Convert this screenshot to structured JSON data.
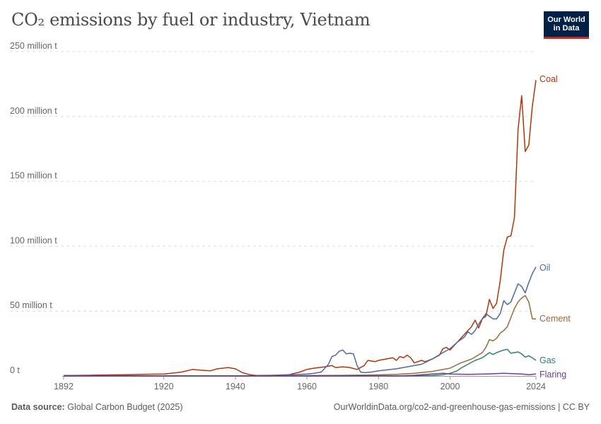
{
  "header": {
    "title": "CO₂ emissions by fuel or industry, Vietnam",
    "logo_line1": "Our World",
    "logo_line2": "in Data"
  },
  "footer": {
    "source_label": "Data source:",
    "source_value": "Global Carbon Budget (2025)",
    "url": "OurWorldinData.org/co2-and-greenhouse-gas-emissions | CC BY"
  },
  "chart_data": {
    "type": "line",
    "title": "CO₂ emissions by fuel or industry, Vietnam",
    "xlabel": "",
    "ylabel": "",
    "xlim": [
      1892,
      2024
    ],
    "ylim": [
      0,
      250
    ],
    "x_ticks": [
      "1892",
      "1920",
      "1940",
      "1960",
      "1980",
      "2000",
      "2024"
    ],
    "y_ticks": [
      "0 t",
      "50 million t",
      "100 million t",
      "150 million t",
      "200 million t",
      "250 million t"
    ],
    "y_tick_values": [
      0,
      50,
      100,
      150,
      200,
      250
    ],
    "grid": true,
    "legend": "inline-right",
    "series": [
      {
        "name": "Coal",
        "color": "#b13507",
        "points": [
          [
            1892,
            0.3
          ],
          [
            1895,
            0.4
          ],
          [
            1900,
            0.6
          ],
          [
            1905,
            0.8
          ],
          [
            1910,
            1.0
          ],
          [
            1915,
            1.3
          ],
          [
            1920,
            1.5
          ],
          [
            1922,
            2.0
          ],
          [
            1925,
            3.0
          ],
          [
            1928,
            5.0
          ],
          [
            1930,
            4.5
          ],
          [
            1933,
            4.0
          ],
          [
            1935,
            5.5
          ],
          [
            1938,
            6.5
          ],
          [
            1940,
            5.5
          ],
          [
            1942,
            2.5
          ],
          [
            1944,
            1.0
          ],
          [
            1946,
            0.3
          ],
          [
            1950,
            0.5
          ],
          [
            1955,
            1.0
          ],
          [
            1958,
            3.0
          ],
          [
            1960,
            5.0
          ],
          [
            1962,
            6.0
          ],
          [
            1965,
            7.0
          ],
          [
            1967,
            8.0
          ],
          [
            1968,
            6.5
          ],
          [
            1970,
            7.0
          ],
          [
            1972,
            6.5
          ],
          [
            1974,
            5.0
          ],
          [
            1976,
            8.0
          ],
          [
            1977,
            12.0
          ],
          [
            1979,
            11.0
          ],
          [
            1980,
            12.0
          ],
          [
            1982,
            13.0
          ],
          [
            1984,
            14.0
          ],
          [
            1985,
            12.0
          ],
          [
            1986,
            15.0
          ],
          [
            1987,
            14.0
          ],
          [
            1988,
            16.0
          ],
          [
            1989,
            14.0
          ],
          [
            1990,
            10.0
          ],
          [
            1992,
            12.0
          ],
          [
            1993,
            11.0
          ],
          [
            1995,
            13.0
          ],
          [
            1997,
            16.0
          ],
          [
            1998,
            21.0
          ],
          [
            1999,
            22.0
          ],
          [
            2000,
            20.0
          ],
          [
            2002,
            26.0
          ],
          [
            2004,
            32.0
          ],
          [
            2006,
            38.0
          ],
          [
            2007,
            43.0
          ],
          [
            2008,
            37.0
          ],
          [
            2009,
            44.0
          ],
          [
            2010,
            46.0
          ],
          [
            2011,
            59.0
          ],
          [
            2012,
            52.0
          ],
          [
            2013,
            56.0
          ],
          [
            2014,
            73.0
          ],
          [
            2015,
            97.0
          ],
          [
            2016,
            107.0
          ],
          [
            2017,
            108.0
          ],
          [
            2018,
            122.0
          ],
          [
            2019,
            190.0
          ],
          [
            2020,
            216.0
          ],
          [
            2021,
            173.0
          ],
          [
            2022,
            178.0
          ],
          [
            2023,
            208.0
          ],
          [
            2024,
            228.0
          ]
        ]
      },
      {
        "name": "Oil",
        "color": "#4c6a9c",
        "points": [
          [
            1892,
            0
          ],
          [
            1940,
            0
          ],
          [
            1950,
            0.2
          ],
          [
            1955,
            0.8
          ],
          [
            1960,
            1.5
          ],
          [
            1962,
            2.0
          ],
          [
            1964,
            3.0
          ],
          [
            1966,
            9.0
          ],
          [
            1967,
            15.0
          ],
          [
            1968,
            16.0
          ],
          [
            1969,
            19.0
          ],
          [
            1970,
            20.0
          ],
          [
            1971,
            17.0
          ],
          [
            1972,
            17.5
          ],
          [
            1973,
            17.0
          ],
          [
            1974,
            8.0
          ],
          [
            1975,
            3.0
          ],
          [
            1976,
            2.5
          ],
          [
            1978,
            3.0
          ],
          [
            1980,
            4.0
          ],
          [
            1985,
            5.5
          ],
          [
            1988,
            7.0
          ],
          [
            1990,
            8.0
          ],
          [
            1992,
            9.0
          ],
          [
            1995,
            13.0
          ],
          [
            1998,
            18.0
          ],
          [
            2000,
            21.0
          ],
          [
            2002,
            26.0
          ],
          [
            2004,
            30.0
          ],
          [
            2005,
            34.0
          ],
          [
            2006,
            32.0
          ],
          [
            2007,
            35.0
          ],
          [
            2008,
            40.0
          ],
          [
            2009,
            44.0
          ],
          [
            2010,
            48.0
          ],
          [
            2011,
            46.0
          ],
          [
            2012,
            44.0
          ],
          [
            2013,
            44.0
          ],
          [
            2014,
            48.0
          ],
          [
            2015,
            58.0
          ],
          [
            2016,
            55.0
          ],
          [
            2017,
            57.0
          ],
          [
            2018,
            64.0
          ],
          [
            2019,
            71.0
          ],
          [
            2020,
            69.0
          ],
          [
            2021,
            64.0
          ],
          [
            2022,
            72.0
          ],
          [
            2023,
            79.0
          ],
          [
            2024,
            84.0
          ]
        ]
      },
      {
        "name": "Cement",
        "color": "#9a6a36",
        "points": [
          [
            1892,
            0
          ],
          [
            1955,
            0
          ],
          [
            1960,
            0.3
          ],
          [
            1970,
            0.5
          ],
          [
            1980,
            0.8
          ],
          [
            1985,
            1.2
          ],
          [
            1990,
            2.0
          ],
          [
            1995,
            3.5
          ],
          [
            2000,
            6.0
          ],
          [
            2003,
            10.0
          ],
          [
            2006,
            13.0
          ],
          [
            2009,
            18.0
          ],
          [
            2010,
            22.0
          ],
          [
            2011,
            28.0
          ],
          [
            2012,
            27.0
          ],
          [
            2013,
            29.0
          ],
          [
            2014,
            33.0
          ],
          [
            2015,
            35.0
          ],
          [
            2016,
            38.0
          ],
          [
            2017,
            45.0
          ],
          [
            2018,
            52.0
          ],
          [
            2019,
            57.0
          ],
          [
            2020,
            60.0
          ],
          [
            2021,
            62.0
          ],
          [
            2022,
            57.0
          ],
          [
            2023,
            44.0
          ],
          [
            2024,
            44.0
          ]
        ]
      },
      {
        "name": "Gas",
        "color": "#2c8465",
        "points": [
          [
            1892,
            0
          ],
          [
            1990,
            0
          ],
          [
            1995,
            0.3
          ],
          [
            1998,
            1.0
          ],
          [
            2000,
            2.0
          ],
          [
            2002,
            4.0
          ],
          [
            2003,
            6.0
          ],
          [
            2005,
            9.0
          ],
          [
            2007,
            12.0
          ],
          [
            2009,
            14.0
          ],
          [
            2010,
            16.0
          ],
          [
            2011,
            18.0
          ],
          [
            2012,
            16.5
          ],
          [
            2013,
            18.0
          ],
          [
            2014,
            19.0
          ],
          [
            2015,
            20.0
          ],
          [
            2016,
            20.5
          ],
          [
            2017,
            17.5
          ],
          [
            2018,
            18.0
          ],
          [
            2019,
            18.5
          ],
          [
            2020,
            17.0
          ],
          [
            2021,
            14.5
          ],
          [
            2022,
            15.5
          ],
          [
            2023,
            14.0
          ],
          [
            2024,
            12.0
          ]
        ]
      },
      {
        "name": "Flaring",
        "color": "#6d3e91",
        "points": [
          [
            1892,
            0
          ],
          [
            1985,
            0
          ],
          [
            1990,
            0.5
          ],
          [
            1995,
            1.5
          ],
          [
            1998,
            2.0
          ],
          [
            2000,
            1.5
          ],
          [
            2005,
            1.2
          ],
          [
            2010,
            1.5
          ],
          [
            2015,
            2.0
          ],
          [
            2020,
            1.5
          ],
          [
            2022,
            1.0
          ],
          [
            2024,
            1.5
          ]
        ]
      }
    ]
  }
}
